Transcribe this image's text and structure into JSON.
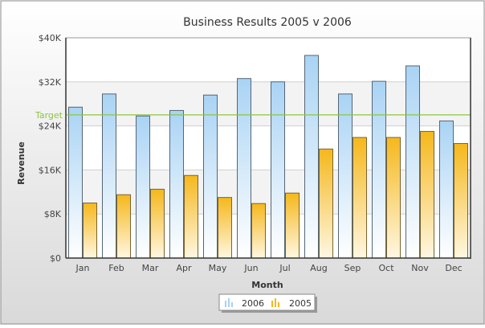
{
  "chart_data": {
    "type": "bar",
    "title": "Business Results 2005 v 2006",
    "xlabel": "Month",
    "ylabel": "Revenue",
    "categories": [
      "Jan",
      "Feb",
      "Mar",
      "Apr",
      "May",
      "Jun",
      "Jul",
      "Aug",
      "Sep",
      "Oct",
      "Nov",
      "Dec"
    ],
    "series": [
      {
        "name": "2006",
        "values": [
          27400,
          29800,
          25800,
          26800,
          29600,
          32600,
          32000,
          36800,
          29800,
          32100,
          34900,
          24900
        ],
        "color": "#a9d3f4"
      },
      {
        "name": "2005",
        "values": [
          10000,
          11500,
          12500,
          15000,
          11000,
          9900,
          11800,
          19800,
          21900,
          21900,
          23000,
          20800
        ],
        "color": "#f5b81c"
      }
    ],
    "ylim": [
      0,
      40000
    ],
    "yticks": [
      {
        "value": 0,
        "label": "$0"
      },
      {
        "value": 8000,
        "label": "$8K"
      },
      {
        "value": 16000,
        "label": "$16K"
      },
      {
        "value": 24000,
        "label": "$24K"
      },
      {
        "value": 32000,
        "label": "$32K"
      },
      {
        "value": 40000,
        "label": "$40K"
      }
    ],
    "target": {
      "label": "Target",
      "value": 26000,
      "color": "#8cc63f"
    },
    "grid": true,
    "legend_position": "bottom-center"
  }
}
